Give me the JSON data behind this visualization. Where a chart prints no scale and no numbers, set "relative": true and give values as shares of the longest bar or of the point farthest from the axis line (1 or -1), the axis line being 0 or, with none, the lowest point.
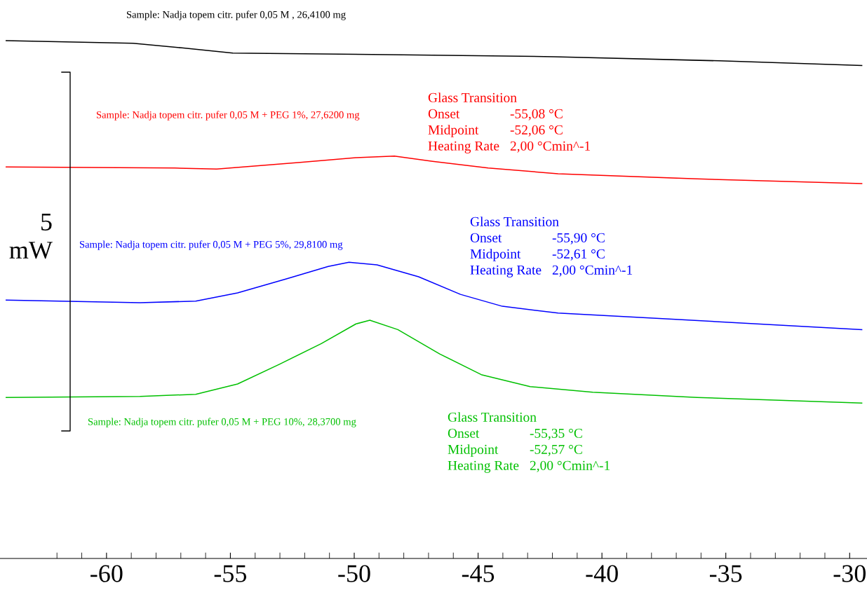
{
  "chart_data": {
    "type": "line",
    "relative": true,
    "legend": false,
    "grid": false,
    "marker": "none",
    "line_style": "solid",
    "xlim": [
      -64.3,
      -29.3
    ],
    "xticks": [
      {
        "value": -62,
        "label": null
      },
      {
        "value": -61,
        "label": null
      },
      -60,
      {
        "value": -59,
        "label": null
      },
      {
        "value": -58,
        "label": null
      },
      {
        "value": -57,
        "label": null
      },
      {
        "value": -56,
        "label": null
      },
      -55,
      {
        "value": -54,
        "label": null
      },
      {
        "value": -53,
        "label": null
      },
      {
        "value": -52,
        "label": null
      },
      {
        "value": -51,
        "label": null
      },
      -50,
      {
        "value": -49,
        "label": null
      },
      {
        "value": -48,
        "label": null
      },
      {
        "value": -47,
        "label": null
      },
      {
        "value": -46,
        "label": null
      },
      -45,
      {
        "value": -44,
        "label": null
      },
      {
        "value": -43,
        "label": null
      },
      {
        "value": -42,
        "label": null
      },
      {
        "value": -41,
        "label": null
      },
      -40,
      {
        "value": -39,
        "label": null
      },
      {
        "value": -38,
        "label": null
      },
      {
        "value": -37,
        "label": null
      },
      {
        "value": -36,
        "label": null
      },
      -35,
      {
        "value": -34,
        "label": null
      },
      {
        "value": -33,
        "label": null
      },
      {
        "value": -32,
        "label": null
      },
      {
        "value": -31,
        "label": null
      },
      -30
    ],
    "tick_labels": "x",
    "series": [
      {
        "name": "Sample: Nadja topem citr. pufer 0,05 M , 26,4100 mg",
        "color": "#000000",
        "x": [
          -64.05,
          -58.93,
          -56.96,
          -54.9,
          -48.63,
          -41.94,
          -35.25,
          -29.51
        ],
        "values": [
          1.0,
          0.995,
          0.986,
          0.976,
          0.973,
          0.969,
          0.961,
          0.952
        ]
      },
      {
        "name": "Sample: Nadja topem citr. pufer 0,05 M + PEG 1%, 27,6200 mg",
        "color": "#ff0000",
        "x": [
          -64.05,
          -57.24,
          -55.55,
          -52.18,
          -49.93,
          -48.38,
          -46.84,
          -44.59,
          -41.77,
          -36.15,
          -29.51
        ],
        "values": [
          0.756,
          0.754,
          0.752,
          0.765,
          0.774,
          0.777,
          0.767,
          0.754,
          0.743,
          0.733,
          0.724
        ]
      },
      {
        "name": "Sample: Nadja topem citr. pufer 0,05 M + PEG 5%, 29,8100 mg",
        "color": "#0000ff",
        "x": [
          -64.05,
          -58.65,
          -56.4,
          -54.71,
          -52.74,
          -51.05,
          -50.21,
          -49.08,
          -47.4,
          -45.71,
          -44.02,
          -41.77,
          -37.55,
          -29.51
        ],
        "values": [
          0.499,
          0.494,
          0.497,
          0.513,
          0.54,
          0.564,
          0.572,
          0.567,
          0.544,
          0.51,
          0.487,
          0.474,
          0.463,
          0.442
        ]
      },
      {
        "name": "Sample: Nadja topem citr. pufer 0,05 M + PEG 10%, 28,3700 mg",
        "color": "#00c000",
        "x": [
          -64.05,
          -58.65,
          -56.4,
          -54.71,
          -53.02,
          -51.33,
          -49.93,
          -49.37,
          -48.24,
          -46.55,
          -44.87,
          -42.9,
          -40.37,
          -36.15,
          -29.51
        ],
        "values": [
          0.311,
          0.313,
          0.317,
          0.337,
          0.375,
          0.415,
          0.453,
          0.46,
          0.442,
          0.395,
          0.355,
          0.332,
          0.321,
          0.311,
          0.3
        ]
      }
    ],
    "annotations": [
      "5\nmW",
      "Glass Transition",
      "Onset",
      "-55,08 °C",
      "Midpoint",
      "-52,06 °C",
      "Heating Rate",
      "2,00 °Cmin^-1",
      "Glass Transition",
      "Onset",
      "-55,90 °C",
      "Midpoint",
      "-52,61 °C",
      "Heating Rate",
      "2,00 °Cmin^-1",
      "Glass Transition",
      "Onset",
      "-55,35 °C",
      "Midpoint",
      "-52,57 °C",
      "Heating Rate",
      "2,00 °Cmin^-1"
    ]
  }
}
